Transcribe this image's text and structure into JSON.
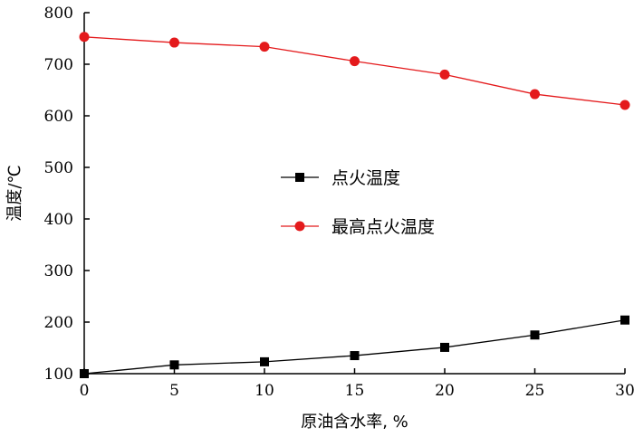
{
  "chart_data": {
    "type": "line",
    "xlabel": "原油含水率, %",
    "ylabel": "温度/℃",
    "xlim": [
      0,
      30
    ],
    "ylim": [
      100,
      800
    ],
    "xticks": [
      0,
      5,
      10,
      15,
      20,
      25,
      30
    ],
    "yticks": [
      100,
      200,
      300,
      400,
      500,
      600,
      700,
      800
    ],
    "grid": false,
    "legend_position": "center",
    "x": [
      0,
      5,
      10,
      15,
      20,
      25,
      30
    ],
    "series": [
      {
        "name": "点火温度",
        "marker": "square",
        "color": "#000000",
        "values": [
          100,
          117,
          123,
          135,
          151,
          175,
          204
        ]
      },
      {
        "name": "最高点火温度",
        "marker": "circle",
        "color": "#e41a1c",
        "values": [
          753,
          742,
          734,
          706,
          680,
          642,
          621
        ]
      }
    ]
  }
}
